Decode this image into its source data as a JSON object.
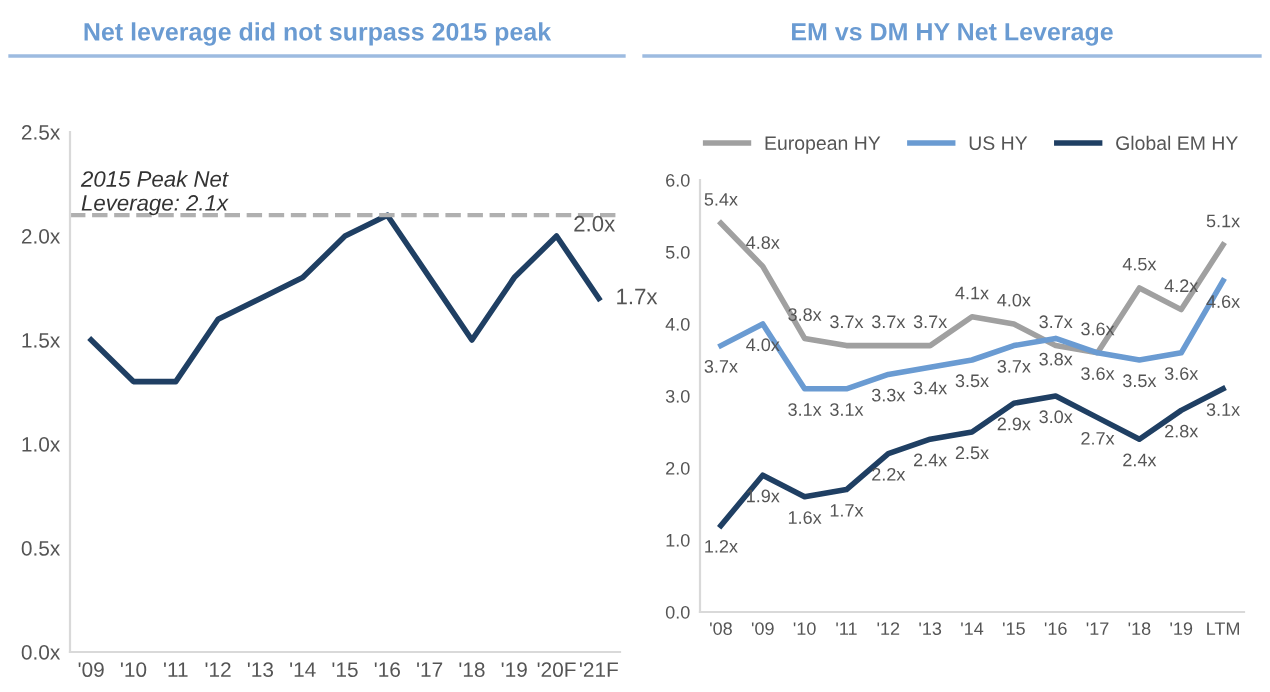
{
  "chart_data": [
    {
      "type": "line",
      "title": "Net leverage did not surpass 2015 peak",
      "categories": [
        "'09",
        "'10",
        "'11",
        "'12",
        "'13",
        "'14",
        "'15",
        "'16",
        "'17",
        "'18",
        "'19",
        "'20F",
        "'21F"
      ],
      "series": [
        {
          "color": "#1f3f63",
          "values": [
            1.5,
            1.3,
            1.3,
            1.6,
            1.7,
            1.8,
            2.0,
            2.1,
            1.8,
            1.5,
            1.8,
            2.0,
            1.7
          ],
          "value_labels": [
            null,
            null,
            null,
            null,
            null,
            null,
            null,
            null,
            null,
            null,
            null,
            "2.0x",
            "1.7x"
          ]
        }
      ],
      "ylim": [
        0,
        2.5
      ],
      "yticks": [
        {
          "value": 0,
          "label": "0.0x"
        },
        {
          "value": 0.5,
          "label": "0.5x"
        },
        {
          "value": 1.0,
          "label": "1.0x"
        },
        {
          "value": 1.5,
          "label": "1.5x"
        },
        {
          "value": 2.0,
          "label": "2.0x"
        },
        {
          "value": 2.5,
          "label": "2.5x"
        }
      ],
      "ref_lines": [
        {
          "axis": "y",
          "value": 2.1,
          "label": "2015 Peak Net\nLeverage: 2.1x",
          "color": "#b0b0b0",
          "line_style": "dashed"
        }
      ],
      "grid": false,
      "legend": false,
      "marker": "none",
      "line_style": "solid"
    },
    {
      "type": "line",
      "title": "EM vs DM HY Net Leverage",
      "categories": [
        "'08",
        "'09",
        "'10",
        "'11",
        "'12",
        "'13",
        "'14",
        "'15",
        "'16",
        "'17",
        "'18",
        "'19",
        "LTM"
      ],
      "series": [
        {
          "name": "European HY",
          "color": "#a0a0a0",
          "values": [
            5.4,
            4.8,
            3.8,
            3.7,
            3.7,
            3.7,
            4.1,
            4.0,
            3.7,
            3.6,
            4.5,
            4.2,
            5.1
          ],
          "value_labels": [
            "5.4x",
            "4.8x",
            "3.8x",
            "3.7x",
            "3.7x",
            "3.7x",
            "4.1x",
            "4.0x",
            "3.7x",
            "3.6x",
            "4.5x",
            "4.2x",
            "5.1x"
          ]
        },
        {
          "name": "US HY",
          "color": "#6a9bd2",
          "values": [
            3.7,
            4.0,
            3.1,
            3.1,
            3.3,
            3.4,
            3.5,
            3.7,
            3.8,
            3.6,
            3.5,
            3.6,
            4.6
          ],
          "value_labels": [
            "3.7x",
            "4.0x",
            "3.1x",
            "3.1x",
            "3.3x",
            "3.4x",
            "3.5x",
            "3.7x",
            "3.8x",
            "3.6x",
            "3.5x",
            "3.6x",
            "4.6x"
          ]
        },
        {
          "name": "Global EM HY",
          "color": "#1f3f63",
          "values": [
            1.2,
            1.9,
            1.6,
            1.7,
            2.2,
            2.4,
            2.5,
            2.9,
            3.0,
            2.7,
            2.4,
            2.8,
            3.1
          ],
          "value_labels": [
            "1.2x",
            "1.9x",
            "1.6x",
            "1.7x",
            "2.2x",
            "2.4x",
            "2.5x",
            "2.9x",
            "3.0x",
            "2.7x",
            "2.4x",
            "2.8x",
            "3.1x"
          ]
        }
      ],
      "ylim": [
        0,
        6
      ],
      "yticks": [
        {
          "value": 0,
          "label": "0.0"
        },
        {
          "value": 1,
          "label": "1.0"
        },
        {
          "value": 2,
          "label": "2.0"
        },
        {
          "value": 3,
          "label": "3.0"
        },
        {
          "value": 4,
          "label": "4.0"
        },
        {
          "value": 5,
          "label": "5.0"
        },
        {
          "value": 6,
          "label": "6.0"
        }
      ],
      "grid": false,
      "legend": "top",
      "marker": "none",
      "line_style": "solid"
    }
  ]
}
